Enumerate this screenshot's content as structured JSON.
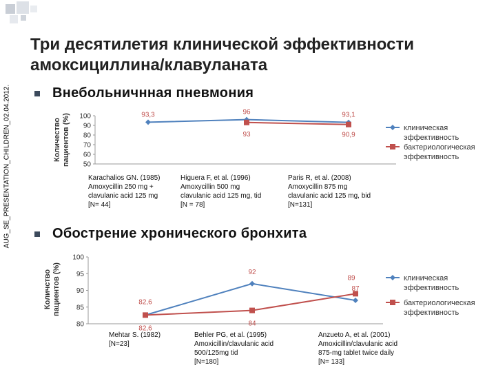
{
  "title": "Три десятилетия клинической эффективности амоксициллина/клавуланата",
  "side_note": "AUG_SE_PRESENTATION_CHILDREN_02.04.2012.",
  "section1": {
    "heading": "Внебольничнная пневмония"
  },
  "section2": {
    "heading": "Обострение хронического бронхита"
  },
  "colors": {
    "clinical": "#4f81bd",
    "bacterio": "#c0504d",
    "accent": "#3c4a5c"
  },
  "chart_data": [
    {
      "type": "line",
      "ylabel": "Количество пациентов (%)",
      "yticks": [
        50,
        60,
        70,
        80,
        90,
        100
      ],
      "ylim": [
        50,
        100
      ],
      "grid": false,
      "legend_position": "right",
      "categories": [
        "Karachalios GN. (1985)\nAmoxycillin 250 mg +\nclavulanic acid 125 mg\n[N= 44]",
        "Higuera F, et al. (1996)\nAmoxycillin 500 mg\nclavulanic acid 125 mg, tid\n[N = 78]",
        "Paris R, et al. (2008)\nAmoxycillin 875 mg\nclavulanic acid 125 mg, bid\n[N=131]"
      ],
      "series": [
        {
          "name": "клиническая эффективность",
          "values": [
            93.3,
            96,
            93.1
          ],
          "labels": [
            "93,3",
            "96",
            "93,1"
          ]
        },
        {
          "name": "бактериологическая эффективность",
          "values": [
            null,
            93,
            90.9
          ],
          "labels": [
            null,
            "93",
            "90,9"
          ]
        }
      ]
    },
    {
      "type": "line",
      "ylabel": "Количство пациентов (%)",
      "yticks": [
        80,
        85,
        90,
        95,
        100
      ],
      "ylim": [
        80,
        100
      ],
      "grid": false,
      "legend_position": "right",
      "categories": [
        "Mehtar S. (1982)\n[N=23]",
        "Behler PG, et al. (1995)\nAmoxicillin/clavulanic acid\n500/125mg tid\n[N=180]",
        "Anzueto A, et al. (2001)\nAmoxicillin/clavulanic acid\n875-mg tablet twice daily\n[N= 133]"
      ],
      "series": [
        {
          "name": "клиническая эффективность",
          "values": [
            82.6,
            92,
            87
          ],
          "labels": [
            "82,6",
            "92",
            "87"
          ]
        },
        {
          "name": "бактериологическая эффективность",
          "values": [
            82.6,
            84,
            89
          ],
          "labels": [
            "82,6",
            "84",
            "89"
          ]
        }
      ]
    }
  ]
}
